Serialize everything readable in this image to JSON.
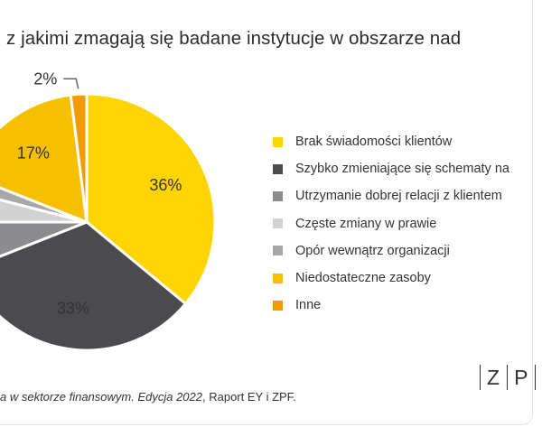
{
  "title": "z jakimi zmagają się badane instytucje w obszarze nad",
  "chart_data": {
    "type": "pie",
    "series": [
      {
        "name": "Brak świadomości klientów",
        "value": 36,
        "label": "36%",
        "color": "#FFD400"
      },
      {
        "name": "Szybko zmieniające się schematy na",
        "value": 33,
        "label": "33%",
        "color": "#4A4A4F"
      },
      {
        "name": "Utrzymanie dobrej relacji z klientem",
        "value": 6,
        "label": "",
        "color": "#8C8C8F"
      },
      {
        "name": "Częste zmiany w prawie",
        "value": 4,
        "label": "",
        "color": "#D2D2D3"
      },
      {
        "name": "Opór wewnątrz organizacji",
        "value": 2,
        "label": "",
        "color": "#A7A7AA"
      },
      {
        "name": "Niedostateczne zasoby",
        "value": 17,
        "label": "17%",
        "color": "#F6C000"
      },
      {
        "name": "Inne",
        "value": 2,
        "label": "2%",
        "color": "#F29B00"
      }
    ]
  },
  "source": {
    "italic": "a w sektorze finansowym. Edycja 2022",
    "rest": ", Raport EY i ZPF."
  },
  "logo": {
    "letter1": "Z",
    "letter2": "P"
  }
}
